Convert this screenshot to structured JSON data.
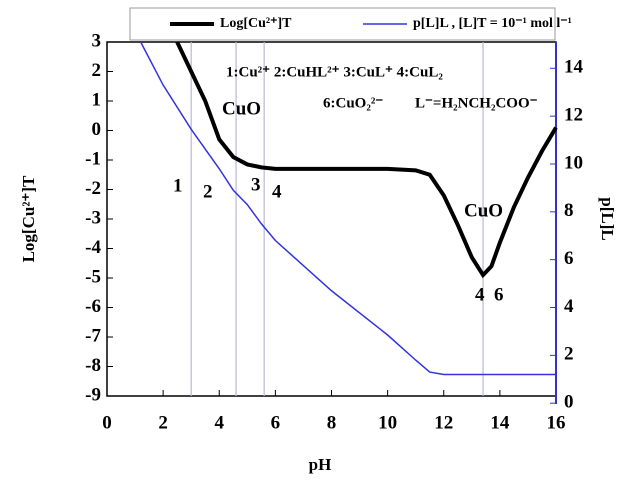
{
  "chart_data": {
    "type": "line",
    "x_label": "pH",
    "y_label": "Log[Cu²⁺]T",
    "y2_label": "p[L]L",
    "xlim": [
      0,
      16
    ],
    "xticks": [
      0,
      2,
      4,
      6,
      8,
      10,
      12,
      14,
      16
    ],
    "ylim": [
      -9,
      3
    ],
    "yticks": [
      3,
      2,
      1,
      0,
      -1,
      -2,
      -3,
      -4,
      -5,
      -6,
      -7,
      -8,
      -9
    ],
    "y2lim": [
      0.3,
      15.1
    ],
    "y2ticks": [
      0,
      2,
      4,
      6,
      8,
      10,
      12,
      14
    ],
    "y2color": "#3333cc",
    "vlines": [
      3,
      4.6,
      5.6,
      13.4
    ],
    "vline_color": "#b8b8d8",
    "series": [
      {
        "name": "Log[Cu²⁺]T",
        "color": "#000000",
        "x": [
          2.5,
          3,
          3.5,
          4,
          4.5,
          5,
          5.5,
          6,
          7,
          10,
          11,
          11.5,
          12,
          12.5,
          13,
          13.4,
          13.7,
          14,
          14.5,
          15,
          15.5,
          16
        ],
        "values": [
          3,
          2,
          1,
          -0.3,
          -0.9,
          -1.15,
          -1.25,
          -1.3,
          -1.3,
          -1.3,
          -1.35,
          -1.5,
          -2.2,
          -3.2,
          -4.3,
          -4.9,
          -4.6,
          -3.8,
          -2.6,
          -1.6,
          -0.7,
          0.1
        ]
      },
      {
        "name": "p[L]L , [L]T = 10⁻¹ mol l⁻¹",
        "color": "#3333dd",
        "axis": "y2",
        "x": [
          1.2,
          2,
          3,
          4,
          4.5,
          5,
          5.5,
          6,
          8,
          10,
          11,
          11.5,
          12,
          16
        ],
        "values": [
          15.1,
          13.3,
          11.45,
          9.8,
          8.9,
          8.3,
          7.5,
          6.8,
          4.7,
          2.85,
          1.8,
          1.3,
          1.2,
          1.2
        ]
      }
    ],
    "annotations": [
      "1:Cu²⁺  2:CuHL²⁺  3:CuL⁺   4:CuL₂",
      "6:CuO₂²⁻",
      "L⁻=H₂NCH₂COO⁻",
      "CuO",
      "CuO",
      "1",
      "2",
      "3",
      "4",
      "4",
      "6"
    ]
  }
}
